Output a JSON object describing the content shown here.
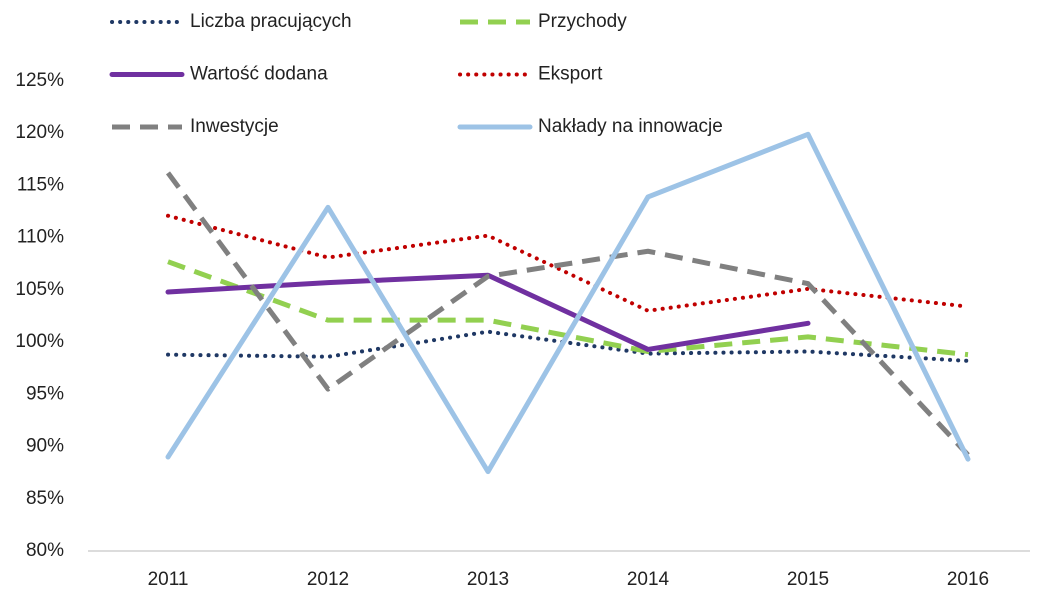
{
  "chart_data": {
    "type": "line",
    "categories": [
      "2011",
      "2012",
      "2013",
      "2014",
      "2015",
      "2016"
    ],
    "series": [
      {
        "name": "Liczba pracujących",
        "color": "#1f3864",
        "dash": "dotted",
        "values": [
          98.8,
          98.6,
          101.0,
          98.9,
          99.1,
          98.2
        ]
      },
      {
        "name": "Przychody",
        "color": "#92d050",
        "dash": "dashed",
        "values": [
          107.7,
          102.1,
          102.1,
          99.1,
          100.5,
          98.8
        ]
      },
      {
        "name": "Wartość dodana",
        "color": "#7030a0",
        "dash": "solid",
        "values": [
          104.8,
          105.7,
          106.4,
          99.3,
          101.8,
          null
        ]
      },
      {
        "name": "Eksport",
        "color": "#c00000",
        "dash": "dotted",
        "values": [
          112.1,
          108.1,
          110.2,
          103.0,
          105.1,
          103.4
        ]
      },
      {
        "name": "Inwestycje",
        "color": "#808080",
        "dash": "dashed",
        "values": [
          116.2,
          95.5,
          106.3,
          108.7,
          105.6,
          89.2
        ]
      },
      {
        "name": "Nakłady na innowacje",
        "color": "#9dc3e6",
        "dash": "solid",
        "values": [
          89.0,
          112.9,
          87.6,
          113.9,
          119.9,
          88.8
        ]
      }
    ],
    "ylim": [
      80,
      125
    ],
    "yticks": [
      {
        "value": 80,
        "label": "80%"
      },
      {
        "value": 85,
        "label": "85%"
      },
      {
        "value": 90,
        "label": "90%"
      },
      {
        "value": 95,
        "label": "95%"
      },
      {
        "value": 100,
        "label": "100%"
      },
      {
        "value": 105,
        "label": "105%"
      },
      {
        "value": 110,
        "label": "110%"
      },
      {
        "value": 115,
        "label": "115%"
      },
      {
        "value": 120,
        "label": "120%"
      },
      {
        "value": 125,
        "label": "125%"
      }
    ],
    "grid": false,
    "legend": "top"
  }
}
